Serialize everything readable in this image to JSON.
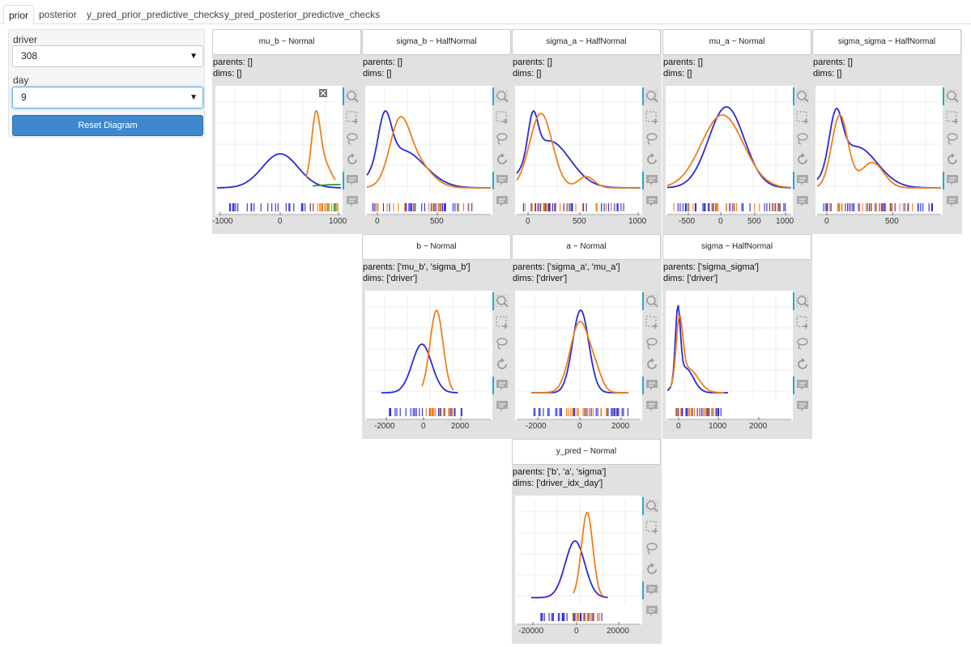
{
  "tabs": [
    {
      "label": "prior",
      "active": true
    },
    {
      "label": "posterior",
      "active": false
    },
    {
      "label": "y_pred_prior_predictive_checks",
      "active": false
    },
    {
      "label": "y_pred_posterior_predictive_checks",
      "active": false
    }
  ],
  "controls": {
    "driver_label": "driver",
    "driver_value": "308",
    "day_label": "day",
    "day_value": "9",
    "reset_label": "Reset Diagram"
  },
  "colors": {
    "series_blue": "#2b2bd6",
    "series_orange": "#f07f1a",
    "series_green": "#2e9a2e",
    "toolbar_accent": "#26a6d1",
    "button": "#3f88cf"
  },
  "toolbar_icons": [
    "box-zoom-icon",
    "box-select-icon",
    "lasso-select-icon",
    "reset-icon",
    "hover-tooltip-icon",
    "hover-tooltip-icon"
  ],
  "nodes": [
    {
      "id": "mu_b",
      "title": "mu_b ~ Normal",
      "parents": "parents: []",
      "dims": "dims: []",
      "ticks": [
        "-1000",
        "0",
        "1000"
      ],
      "show_close": true
    },
    {
      "id": "sigma_b",
      "title": "sigma_b ~ HalfNormal",
      "parents": "parents: []",
      "dims": "dims: []",
      "ticks": [
        "0",
        "500"
      ]
    },
    {
      "id": "sigma_a",
      "title": "sigma_a ~ HalfNormal",
      "parents": "parents: []",
      "dims": "dims: []",
      "ticks": [
        "0",
        "500",
        "1000"
      ]
    },
    {
      "id": "mu_a",
      "title": "mu_a ~ Normal",
      "parents": "parents: []",
      "dims": "dims: []",
      "ticks": [
        "-500",
        "0",
        "500",
        "1000"
      ]
    },
    {
      "id": "sigma_sigma",
      "title": "sigma_sigma ~ HalfNormal",
      "parents": "parents: []",
      "dims": "dims: []",
      "ticks": [
        "0",
        "500"
      ]
    },
    {
      "id": "b",
      "title": "b ~ Normal",
      "parents": "parents: ['mu_b', 'sigma_b']",
      "dims": "dims: ['driver']",
      "ticks": [
        "-2000",
        "0",
        "2000"
      ]
    },
    {
      "id": "a",
      "title": "a ~ Normal",
      "parents": "parents: ['sigma_a', 'mu_a']",
      "dims": "dims: ['driver']",
      "ticks": [
        "-2000",
        "0",
        "2000"
      ]
    },
    {
      "id": "sigma",
      "title": "sigma ~ HalfNormal",
      "parents": "parents: ['sigma_sigma']",
      "dims": "dims: ['driver']",
      "ticks": [
        "0",
        "1000",
        "2000"
      ]
    },
    {
      "id": "y_pred",
      "title": "y_pred ~ Normal",
      "parents": "parents: ['b', 'a', 'sigma']",
      "dims": "dims: ['driver_idx_day']",
      "ticks": [
        "-20000",
        "0",
        "20000"
      ]
    }
  ]
}
